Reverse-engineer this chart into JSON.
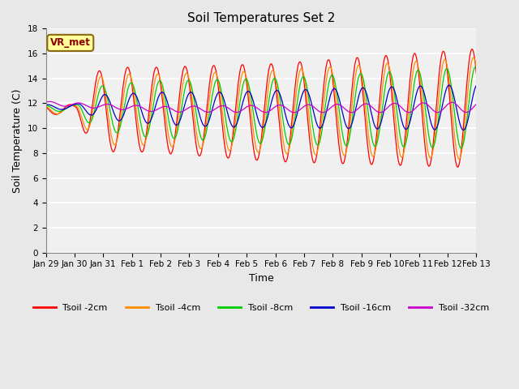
{
  "title": "Soil Temperatures Set 2",
  "xlabel": "Time",
  "ylabel": "Soil Temperature (C)",
  "ylim": [
    0,
    18
  ],
  "yticks": [
    0,
    2,
    4,
    6,
    8,
    10,
    12,
    14,
    16,
    18
  ],
  "annotation_text": "VR_met",
  "annotation_color": "#8B0000",
  "annotation_bg": "#FFFF99",
  "annotation_border": "#8B6914",
  "plot_bg_color": "#F0F0F0",
  "fig_bg_color": "#E8E8E8",
  "grid_color": "#FFFFFF",
  "series_colors": {
    "Tsoil -2cm": "#FF0000",
    "Tsoil -4cm": "#FF8C00",
    "Tsoil -8cm": "#00CC00",
    "Tsoil -16cm": "#0000CC",
    "Tsoil -32cm": "#CC00CC"
  },
  "x_tick_labels": [
    "Jan 29",
    "Jan 30",
    "Jan 31",
    "Feb 1",
    "Feb 2",
    "Feb 3",
    "Feb 4",
    "Feb 5",
    "Feb 6",
    "Feb 7",
    "Feb 8",
    "Feb 9",
    "Feb 10",
    "Feb 11",
    "Feb 12",
    "Feb 13"
  ],
  "title_fontsize": 11,
  "label_fontsize": 9,
  "tick_fontsize": 7.5
}
